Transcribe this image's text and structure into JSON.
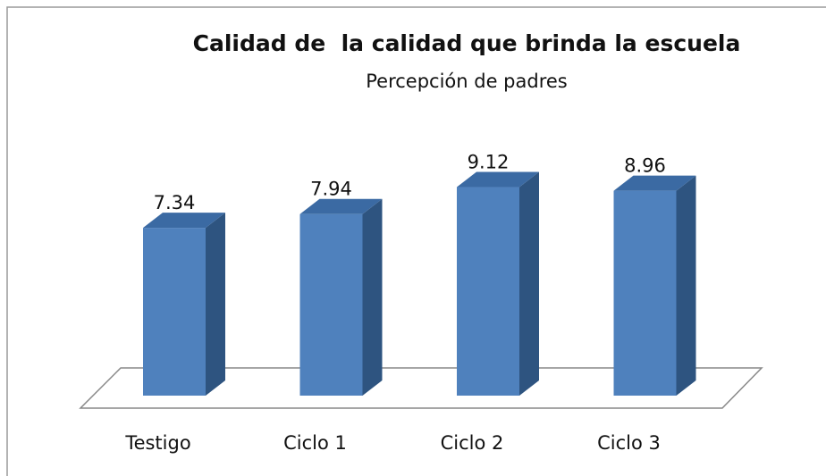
{
  "chart_data": {
    "type": "bar3d",
    "title": "Calidad de  la calidad que brinda la escuela",
    "subtitle": "Percepción de padres",
    "categories": [
      "Testigo",
      "Ciclo 1",
      "Ciclo 2",
      "Ciclo 3"
    ],
    "values": [
      7.34,
      7.94,
      9.12,
      8.96
    ],
    "color": "#4f81bd"
  }
}
